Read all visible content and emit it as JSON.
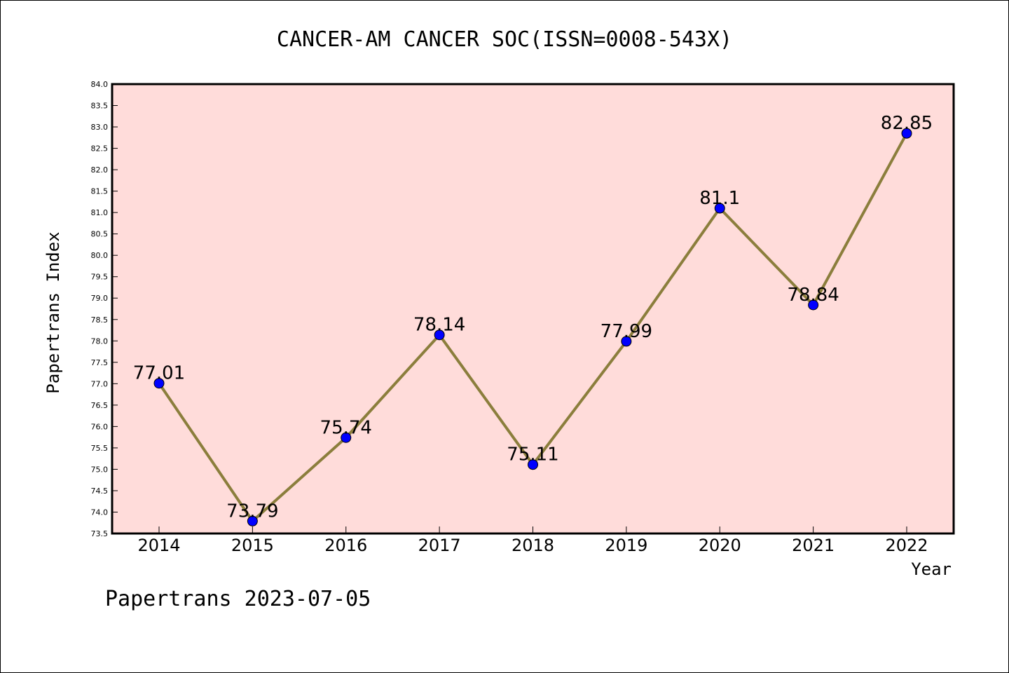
{
  "chart_data": {
    "type": "line",
    "title": "CANCER-AM CANCER SOC(ISSN=0008-543X)",
    "xlabel": "Year",
    "ylabel": "Papertrans Index",
    "categories": [
      "2014",
      "2015",
      "2016",
      "2017",
      "2018",
      "2019",
      "2020",
      "2021",
      "2022"
    ],
    "series": [
      {
        "values": [
          77.01,
          73.79,
          75.74,
          78.14,
          75.11,
          77.99,
          81.1,
          78.84,
          82.85
        ],
        "labels": [
          "77.01",
          "73.79",
          "75.74",
          "78.14",
          "75.11",
          "77.99",
          "81.1",
          "78.84",
          "82.85"
        ]
      }
    ],
    "ylim": [
      73.5,
      84.0
    ],
    "ytick_step": 0.5,
    "legend": "none",
    "grid": false,
    "colors": {
      "plot_background": "#FFDCDA",
      "line": "#8B7E3C",
      "marker": "#0000FF"
    }
  },
  "footer": "Papertrans 2023-07-05"
}
